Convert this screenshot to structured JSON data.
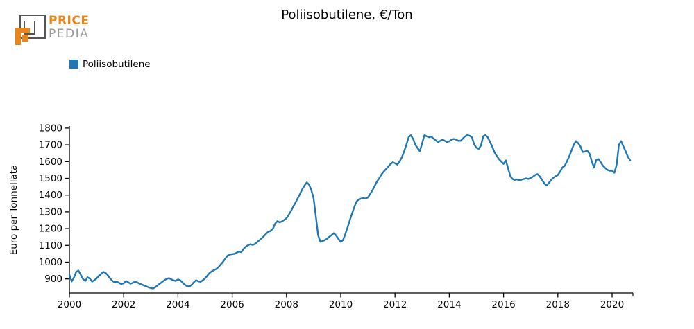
{
  "logo": {
    "brand_top": "PRICE",
    "brand_bottom": "PEDIA",
    "orange": "#e8861b",
    "gray": "#97999b",
    "dark_gray": "#55565a"
  },
  "title": "Poliisobutilene, €/Ton",
  "legend": {
    "label": "Poliisobutilene",
    "color": "#1f77b4"
  },
  "chart_data": {
    "type": "line",
    "title": "Poliisobutilene, €/Ton",
    "xlabel": "",
    "ylabel": "Euro per Tonnellata",
    "grid": false,
    "legend_position": "top-left",
    "x_ticks": [
      2000,
      2002,
      2004,
      2006,
      2008,
      2010,
      2012,
      2014,
      2016,
      2018,
      2020
    ],
    "y_ticks": [
      900,
      1000,
      1100,
      1200,
      1300,
      1400,
      1500,
      1600,
      1700,
      1800
    ],
    "xlim": [
      2000,
      2020.77
    ],
    "ylim": [
      815,
      1835
    ],
    "frequency": "monthly",
    "series": [
      {
        "name": "Poliisobutilene",
        "color": "#1f77b4",
        "start_year": 2000,
        "points_per_year": 12,
        "values": [
          925,
          885,
          908,
          942,
          950,
          926,
          900,
          888,
          910,
          903,
          884,
          892,
          903,
          918,
          930,
          942,
          936,
          922,
          903,
          888,
          880,
          884,
          876,
          870,
          874,
          888,
          880,
          872,
          876,
          884,
          879,
          872,
          867,
          861,
          856,
          850,
          846,
          843,
          851,
          862,
          872,
          882,
          892,
          900,
          905,
          898,
          892,
          888,
          897,
          892,
          879,
          866,
          857,
          855,
          864,
          880,
          892,
          886,
          883,
          892,
          904,
          920,
          936,
          946,
          953,
          960,
          972,
          988,
          1004,
          1022,
          1040,
          1046,
          1048,
          1050,
          1057,
          1064,
          1060,
          1078,
          1092,
          1101,
          1107,
          1103,
          1108,
          1119,
          1130,
          1142,
          1155,
          1170,
          1182,
          1186,
          1200,
          1230,
          1245,
          1237,
          1243,
          1252,
          1262,
          1283,
          1305,
          1332,
          1355,
          1382,
          1408,
          1436,
          1458,
          1476,
          1462,
          1430,
          1380,
          1270,
          1160,
          1121,
          1126,
          1132,
          1140,
          1152,
          1162,
          1173,
          1158,
          1138,
          1121,
          1131,
          1166,
          1207,
          1249,
          1290,
          1330,
          1362,
          1374,
          1379,
          1382,
          1379,
          1386,
          1407,
          1428,
          1455,
          1480,
          1500,
          1524,
          1540,
          1555,
          1570,
          1585,
          1596,
          1590,
          1582,
          1600,
          1625,
          1660,
          1700,
          1745,
          1758,
          1735,
          1700,
          1680,
          1662,
          1710,
          1758,
          1751,
          1745,
          1749,
          1738,
          1727,
          1717,
          1724,
          1731,
          1724,
          1717,
          1721,
          1731,
          1735,
          1731,
          1724,
          1724,
          1738,
          1751,
          1758,
          1754,
          1745,
          1703,
          1683,
          1676,
          1696,
          1751,
          1758,
          1745,
          1717,
          1689,
          1655,
          1634,
          1614,
          1600,
          1586,
          1607,
          1560,
          1512,
          1496,
          1490,
          1494,
          1488,
          1492,
          1496,
          1500,
          1496,
          1503,
          1510,
          1520,
          1525,
          1512,
          1491,
          1470,
          1458,
          1472,
          1490,
          1503,
          1512,
          1520,
          1540,
          1565,
          1574,
          1600,
          1630,
          1665,
          1700,
          1722,
          1710,
          1690,
          1657,
          1660,
          1665,
          1648,
          1602,
          1565,
          1610,
          1615,
          1595,
          1574,
          1561,
          1550,
          1545,
          1545,
          1533,
          1580,
          1700,
          1722,
          1690,
          1660,
          1628,
          1607
        ]
      }
    ]
  }
}
